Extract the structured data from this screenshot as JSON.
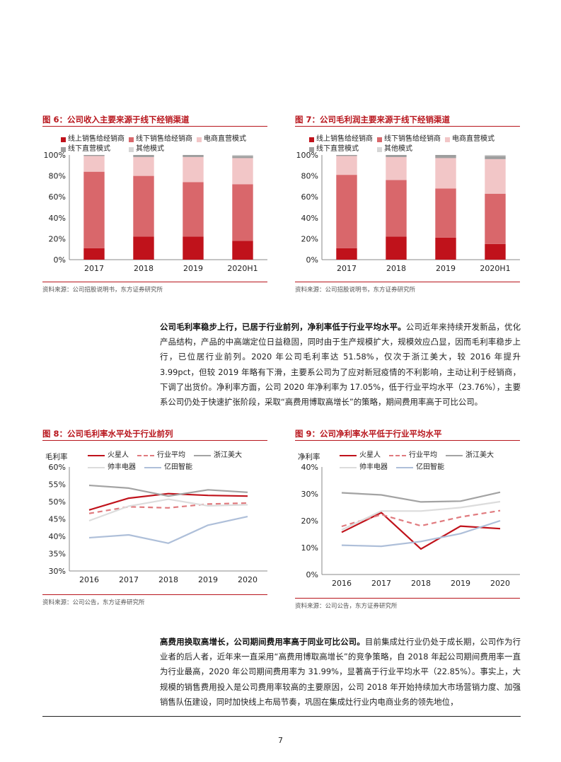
{
  "fig6": {
    "title": "图 6：公司收入主要来源于线下经销渠道",
    "source": "资料来源：公司招股说明书，东方证券研究所",
    "legend_row1": [
      "线上销售给经销商",
      "线下销售给经销商",
      "电商直营模式"
    ],
    "legend_row2": [
      "线下直营模式",
      "其他模式"
    ],
    "chart_data": {
      "type": "bar",
      "stacked": true,
      "categories": [
        "2017",
        "2018",
        "2019",
        "2020H1"
      ],
      "y_ticks": [
        "0%",
        "20%",
        "40%",
        "60%",
        "80%",
        "100%"
      ],
      "ylim": [
        0,
        100
      ],
      "series": [
        {
          "name": "线上销售给经销商",
          "color": "#c0121b",
          "values": [
            11,
            22,
            22,
            18
          ]
        },
        {
          "name": "线下销售给经销商",
          "color": "#d9676b",
          "values": [
            73,
            58,
            52,
            54
          ]
        },
        {
          "name": "电商直营模式",
          "color": "#f2c6c7",
          "values": [
            15,
            18,
            24,
            25
          ]
        },
        {
          "name": "线下直营模式",
          "color": "#9e9e9e",
          "values": [
            1,
            2,
            2,
            2
          ]
        },
        {
          "name": "其他模式",
          "color": "#d6d6d6",
          "values": [
            0,
            0,
            0,
            1
          ]
        }
      ]
    }
  },
  "fig7": {
    "title": "图 7：公司毛利润主要来源于线下经销渠道",
    "source": "资料来源：公司招股说明书，东方证券研究所",
    "legend_row1": [
      "线上销售给经销商",
      "线下销售给经销商",
      "电商直营模式"
    ],
    "legend_row2": [
      "线下直营模式",
      "其他模式"
    ],
    "chart_data": {
      "type": "bar",
      "stacked": true,
      "categories": [
        "2017",
        "2018",
        "2019",
        "2020H1"
      ],
      "y_ticks": [
        "0%",
        "20%",
        "40%",
        "60%",
        "80%",
        "100%"
      ],
      "ylim": [
        0,
        100
      ],
      "series": [
        {
          "name": "线上销售给经销商",
          "color": "#c0121b",
          "values": [
            11,
            22,
            21,
            15
          ]
        },
        {
          "name": "线下销售给经销商",
          "color": "#d9676b",
          "values": [
            70,
            54,
            47,
            48
          ]
        },
        {
          "name": "电商直营模式",
          "color": "#f2c6c7",
          "values": [
            18,
            22,
            29,
            33
          ]
        },
        {
          "name": "线下直营模式",
          "color": "#9e9e9e",
          "values": [
            1,
            2,
            3,
            3
          ]
        },
        {
          "name": "其他模式",
          "color": "#d6d6d6",
          "values": [
            0,
            0,
            0,
            1
          ]
        }
      ]
    }
  },
  "para1": {
    "lead": "公司毛利率稳步上行，已居于行业前列，净利率低于行业平均水平。",
    "body": "公司近年来持续开发新品，优化产品结构，产品的中高端定位日益稳固，同时由于生产规模扩大，规模效应凸显，因而毛利率稳步上行，已位居行业前列。2020 年公司毛利率达 51.58%，仅次于浙江美大，较 2016 年提升 3.99pct，但较 2019 年略有下滑，主要系公司为了应对新冠疫情的不利影响，主动让利于经销商，下调了出货价。净利率方面，公司 2020 年净利率为 17.05%，低于行业平均水平（23.76%），主要系公司仍处于快速扩张阶段，采取“高费用博取高增长”的策略，期间费用率高于可比公司。"
  },
  "fig8": {
    "title": "图 8：公司毛利率水平处于行业前列",
    "source": "资料来源：公司公告，东方证券研究所",
    "ylabel": "毛利率",
    "legend_row1": [
      "火星人",
      "行业平均",
      "浙江美大"
    ],
    "legend_row2": [
      "帅丰电器",
      "亿田智能"
    ],
    "chart_data": {
      "type": "line",
      "x": [
        "2016",
        "2017",
        "2018",
        "2019",
        "2020"
      ],
      "y_ticks": [
        "30%",
        "35%",
        "40%",
        "45%",
        "50%",
        "55%",
        "60%"
      ],
      "ylim": [
        30,
        60
      ],
      "series": [
        {
          "name": "火星人",
          "color": "#c0121b",
          "dash": false,
          "values": [
            47.6,
            51.0,
            52.3,
            51.8,
            51.6
          ]
        },
        {
          "name": "行业平均",
          "color": "#e07a7e",
          "dash": true,
          "values": [
            46.6,
            48.5,
            48.2,
            49.3,
            49.6
          ]
        },
        {
          "name": "浙江美大",
          "color": "#a3a3a3",
          "dash": false,
          "values": [
            54.7,
            53.9,
            51.6,
            53.4,
            52.7
          ]
        },
        {
          "name": "帅丰电器",
          "color": "#dcdcdc",
          "dash": false,
          "values": [
            44.5,
            48.7,
            50.7,
            48.8,
            49.1
          ]
        },
        {
          "name": "亿田智能",
          "color": "#aebfd9",
          "dash": false,
          "values": [
            39.6,
            40.4,
            38.0,
            43.2,
            45.7
          ]
        }
      ]
    }
  },
  "fig9": {
    "title": "图 9：公司净利率水平低于行业平均水平",
    "source": "资料来源：公司公告，东方证券研究所",
    "ylabel": "净利率",
    "legend_row1": [
      "火星人",
      "行业平均",
      "浙江美大"
    ],
    "legend_row2": [
      "帅丰电器",
      "亿田智能"
    ],
    "chart_data": {
      "type": "line",
      "x": [
        "2016",
        "2017",
        "2018",
        "2019",
        "2020"
      ],
      "y_ticks": [
        "0%",
        "10%",
        "20%",
        "30%",
        "40%"
      ],
      "ylim": [
        0,
        40
      ],
      "series": [
        {
          "name": "火星人",
          "color": "#c0121b",
          "dash": false,
          "values": [
            15.7,
            23.0,
            9.5,
            18.0,
            17.05
          ]
        },
        {
          "name": "行业平均",
          "color": "#e07a7e",
          "dash": true,
          "values": [
            17.9,
            22.3,
            18.1,
            21.4,
            23.76
          ]
        },
        {
          "name": "浙江美大",
          "color": "#a3a3a3",
          "dash": false,
          "values": [
            30.4,
            29.6,
            27.0,
            27.3,
            30.6
          ]
        },
        {
          "name": "帅丰电器",
          "color": "#dcdcdc",
          "dash": false,
          "values": [
            16.6,
            23.6,
            23.6,
            24.9,
            27.1
          ]
        },
        {
          "name": "亿田智能",
          "color": "#aebfd9",
          "dash": false,
          "values": [
            10.9,
            10.5,
            12.3,
            15.2,
            20.0
          ]
        }
      ]
    }
  },
  "para2": {
    "lead": "高费用换取高增长，公司期间费用率高于同业可比公司。",
    "body": "目前集成灶行业仍处于成长期，公司作为行业者的后人者，近年来一直采用“高费用博取高增长”的竞争策略，自 2018 年起公司期间费用率一直为行业最高，2020 年公司期间费用率为 31.99%，显著高于行业平均水平（22.85%）。事实上，大规模的销售费用投入是公司费用率较高的主要原因，公司 2018 年开始持续加大市场营销力度、加强销售队伍建设，同时加快线上布局节奏，巩固在集成灶行业内电商业务的领先地位，"
  },
  "page_number": "7"
}
